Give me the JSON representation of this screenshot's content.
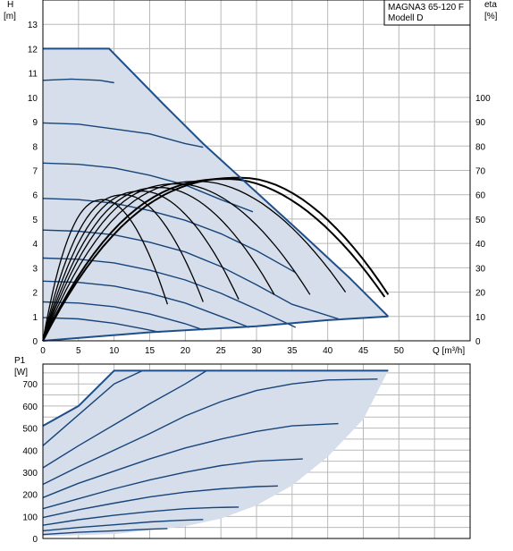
{
  "legend": {
    "line1": "MAGNA3 65-120 F",
    "line2": "Modell D"
  },
  "labels": {
    "head_symbol": "H",
    "head_unit": "[m]",
    "eta_symbol": "eta",
    "eta_unit": "[%]",
    "flow_label": "Q [m³/h]",
    "power_symbol": "P1",
    "power_unit": "[W]"
  },
  "colors": {
    "region_fill": "#d5deea",
    "speed_curve": "#17447a",
    "envelope": "#1f4f8a",
    "efficiency_curve": "#000000",
    "grid": "#b9b9b9"
  },
  "chart_data": [
    {
      "type": "line",
      "title": "",
      "xlabel": "Q [m³/h]",
      "ylabel": "H [m]",
      "y2label": "eta [%]",
      "xlim": [
        0,
        60
      ],
      "ylim": [
        0,
        14
      ],
      "y2lim": [
        0,
        140
      ],
      "x_ticks": [
        0,
        5,
        10,
        15,
        20,
        25,
        30,
        35,
        40,
        45,
        50
      ],
      "y_ticks": [
        0,
        1,
        2,
        3,
        4,
        5,
        6,
        7,
        8,
        9,
        10,
        11,
        12,
        13
      ],
      "y2_ticks": [
        0,
        10,
        20,
        30,
        40,
        50,
        60,
        70,
        80,
        90,
        100
      ],
      "grid": true,
      "max_curve": [
        [
          0,
          12
        ],
        [
          9.3,
          12
        ],
        [
          17,
          9.7
        ],
        [
          22.5,
          8.1
        ],
        [
          30,
          6.1
        ],
        [
          36,
          4.5
        ],
        [
          43,
          2.6
        ],
        [
          48.5,
          1.0
        ]
      ],
      "min_curve": [
        [
          0,
          0
        ],
        [
          15,
          0.35
        ],
        [
          30,
          0.6
        ],
        [
          40,
          0.85
        ],
        [
          48.5,
          1.0
        ]
      ],
      "head_series": [
        {
          "values": [
            [
              0,
              10.7
            ],
            [
              4,
              10.75
            ],
            [
              8,
              10.7
            ],
            [
              10,
              10.6
            ]
          ]
        },
        {
          "values": [
            [
              0,
              8.95
            ],
            [
              5,
              8.9
            ],
            [
              10,
              8.7
            ],
            [
              15,
              8.5
            ],
            [
              20,
              8.1
            ],
            [
              22.5,
              7.95
            ]
          ]
        },
        {
          "values": [
            [
              0,
              7.3
            ],
            [
              5,
              7.25
            ],
            [
              10,
              7.1
            ],
            [
              15,
              6.8
            ],
            [
              20,
              6.4
            ],
            [
              25,
              5.8
            ],
            [
              29.5,
              5.3
            ]
          ]
        },
        {
          "values": [
            [
              0,
              5.85
            ],
            [
              5,
              5.8
            ],
            [
              10,
              5.65
            ],
            [
              15,
              5.35
            ],
            [
              20,
              4.95
            ],
            [
              25,
              4.4
            ],
            [
              30,
              3.7
            ],
            [
              35.5,
              2.8
            ]
          ]
        },
        {
          "values": [
            [
              0,
              4.55
            ],
            [
              5,
              4.5
            ],
            [
              10,
              4.35
            ],
            [
              15,
              4.05
            ],
            [
              20,
              3.65
            ],
            [
              25,
              3.05
            ],
            [
              30,
              2.3
            ],
            [
              35,
              1.5
            ],
            [
              41.5,
              0.9
            ]
          ]
        },
        {
          "values": [
            [
              0,
              3.4
            ],
            [
              5,
              3.35
            ],
            [
              10,
              3.2
            ],
            [
              15,
              2.9
            ],
            [
              20,
              2.5
            ],
            [
              25,
              1.95
            ],
            [
              30,
              1.3
            ],
            [
              35.5,
              0.55
            ]
          ]
        },
        {
          "values": [
            [
              0,
              2.45
            ],
            [
              5,
              2.4
            ],
            [
              10,
              2.25
            ],
            [
              15,
              1.95
            ],
            [
              20,
              1.55
            ],
            [
              25,
              1.0
            ],
            [
              29,
              0.55
            ]
          ]
        },
        {
          "values": [
            [
              0,
              1.6
            ],
            [
              5,
              1.55
            ],
            [
              10,
              1.4
            ],
            [
              15,
              1.1
            ],
            [
              20,
              0.7
            ],
            [
              22.5,
              0.45
            ]
          ]
        },
        {
          "values": [
            [
              0,
              0.95
            ],
            [
              5,
              0.9
            ],
            [
              10,
              0.72
            ],
            [
              14,
              0.5
            ],
            [
              16.5,
              0.35
            ]
          ]
        }
      ],
      "efficiency_series": [
        {
          "peak_flow": 8.5,
          "peak_eta": 58.0,
          "end_flow": 17.5,
          "end_eta": 15
        },
        {
          "peak_flow": 11.5,
          "peak_eta": 60.0,
          "end_flow": 22.5,
          "end_eta": 16
        },
        {
          "peak_flow": 14.0,
          "peak_eta": 61.5,
          "end_flow": 27.5,
          "end_eta": 17
        },
        {
          "peak_flow": 16.5,
          "peak_eta": 63.0,
          "end_flow": 32.5,
          "end_eta": 19
        },
        {
          "peak_flow": 19.0,
          "peak_eta": 64.5,
          "end_flow": 37.5,
          "end_eta": 19
        },
        {
          "peak_flow": 22.0,
          "peak_eta": 65.5,
          "end_flow": 42.5,
          "end_eta": 20
        },
        {
          "peak_flow": 26.0,
          "peak_eta": 66.5,
          "end_flow": 48.0,
          "end_eta": 18,
          "bold": true
        },
        {
          "peak_flow": 28.0,
          "peak_eta": 67.0,
          "end_flow": 48.5,
          "end_eta": 19,
          "bold": true
        }
      ]
    },
    {
      "type": "line",
      "title": "",
      "xlabel": "",
      "ylabel": "P1 [W]",
      "xlim": [
        0,
        60
      ],
      "ylim": [
        0,
        790
      ],
      "y_ticks": [
        0,
        100,
        200,
        300,
        400,
        500,
        600,
        700
      ],
      "grid": true,
      "max_curve": [
        [
          0,
          510
        ],
        [
          5,
          600
        ],
        [
          10,
          760
        ],
        [
          48.5,
          760
        ]
      ],
      "min_curve": [
        [
          0,
          10
        ],
        [
          10,
          20
        ],
        [
          20,
          55
        ],
        [
          25,
          90
        ],
        [
          30,
          150
        ],
        [
          35,
          240
        ],
        [
          40,
          370
        ],
        [
          45,
          540
        ],
        [
          48.5,
          760
        ]
      ],
      "power_series": [
        {
          "values": [
            [
              0,
              420
            ],
            [
              5,
              560
            ],
            [
              10,
              700
            ],
            [
              14,
              760
            ]
          ]
        },
        {
          "values": [
            [
              0,
              320
            ],
            [
              5,
              420
            ],
            [
              10,
              515
            ],
            [
              15,
              610
            ],
            [
              20,
              700
            ],
            [
              23,
              760
            ]
          ]
        },
        {
          "values": [
            [
              0,
              245
            ],
            [
              5,
              325
            ],
            [
              10,
              400
            ],
            [
              15,
              475
            ],
            [
              20,
              555
            ],
            [
              25,
              620
            ],
            [
              30,
              670
            ],
            [
              35,
              700
            ],
            [
              40,
              718
            ],
            [
              47,
              722
            ]
          ]
        },
        {
          "values": [
            [
              0,
              185
            ],
            [
              5,
              250
            ],
            [
              10,
              305
            ],
            [
              15,
              360
            ],
            [
              20,
              410
            ],
            [
              25,
              450
            ],
            [
              30,
              485
            ],
            [
              35,
              510
            ],
            [
              41.5,
              520
            ]
          ]
        },
        {
          "values": [
            [
              0,
              135
            ],
            [
              5,
              180
            ],
            [
              10,
              225
            ],
            [
              15,
              265
            ],
            [
              20,
              300
            ],
            [
              25,
              330
            ],
            [
              30,
              350
            ],
            [
              36.5,
              360
            ]
          ]
        },
        {
          "values": [
            [
              0,
              95
            ],
            [
              5,
              130
            ],
            [
              10,
              160
            ],
            [
              15,
              188
            ],
            [
              20,
              210
            ],
            [
              25,
              225
            ],
            [
              30,
              235
            ],
            [
              33,
              238
            ]
          ]
        },
        {
          "values": [
            [
              0,
              60
            ],
            [
              5,
              85
            ],
            [
              10,
              105
            ],
            [
              15,
              122
            ],
            [
              20,
              135
            ],
            [
              24,
              140
            ],
            [
              27.5,
              142
            ]
          ]
        },
        {
          "values": [
            [
              0,
              35
            ],
            [
              5,
              50
            ],
            [
              10,
              62
            ],
            [
              15,
              75
            ],
            [
              19,
              82
            ],
            [
              22.5,
              86
            ]
          ]
        },
        {
          "values": [
            [
              0,
              18
            ],
            [
              5,
              28
            ],
            [
              10,
              35
            ],
            [
              15,
              42
            ],
            [
              17.5,
              45
            ]
          ]
        }
      ]
    }
  ]
}
